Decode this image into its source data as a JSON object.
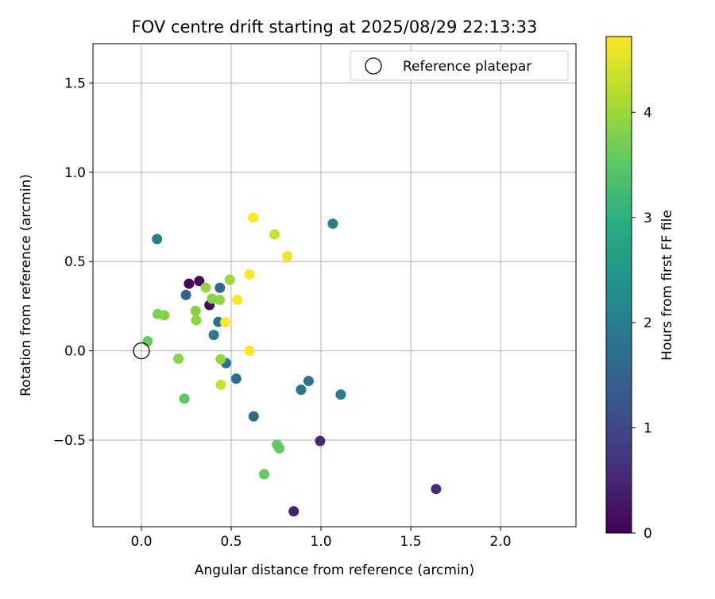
{
  "chart_data": {
    "type": "scatter",
    "title": "FOV centre drift starting at 2025/08/29 22:13:33",
    "xlabel": "Angular distance from reference (arcmin)",
    "ylabel": "Rotation from reference (arcmin)",
    "xlim": [
      -0.27,
      2.42
    ],
    "ylim": [
      -0.985,
      1.72
    ],
    "xticks": [
      0.0,
      0.5,
      1.0,
      1.5,
      2.0
    ],
    "xtick_labels": [
      "0.0",
      "0.5",
      "1.0",
      "1.5",
      "2.0"
    ],
    "yticks": [
      -0.5,
      0.0,
      0.5,
      1.0,
      1.5
    ],
    "ytick_labels": [
      "−0.5",
      "0.0",
      "0.5",
      "1.0",
      "1.5"
    ],
    "grid": true,
    "legend": {
      "position": "top-right",
      "label": "Reference platepar"
    },
    "reference_point": {
      "x": 0.0,
      "y": 0.0
    },
    "colorbar": {
      "label": "Hours from first FF file",
      "range": [
        0,
        4.72
      ],
      "ticks": [
        0,
        1,
        2,
        3,
        4
      ],
      "tick_labels": [
        "0",
        "1",
        "2",
        "3",
        "4"
      ],
      "colormap": "viridis"
    },
    "points": [
      {
        "x": 0.265,
        "y": 0.376,
        "c": 0.05
      },
      {
        "x": 0.322,
        "y": 0.391,
        "c": 0.1
      },
      {
        "x": 0.379,
        "y": 0.256,
        "c": 0.15
      },
      {
        "x": 0.848,
        "y": -0.899,
        "c": 0.4
      },
      {
        "x": 0.995,
        "y": -0.505,
        "c": 0.5
      },
      {
        "x": 1.641,
        "y": -0.774,
        "c": 0.55
      },
      {
        "x": 0.248,
        "y": 0.313,
        "c": 1.45
      },
      {
        "x": 0.437,
        "y": 0.353,
        "c": 1.55
      },
      {
        "x": 0.625,
        "y": -0.367,
        "c": 1.6
      },
      {
        "x": 0.428,
        "y": 0.162,
        "c": 1.7
      },
      {
        "x": 0.528,
        "y": -0.156,
        "c": 1.75
      },
      {
        "x": 0.471,
        "y": -0.069,
        "c": 1.85
      },
      {
        "x": 0.403,
        "y": 0.089,
        "c": 1.9
      },
      {
        "x": 0.889,
        "y": -0.218,
        "c": 1.8
      },
      {
        "x": 0.931,
        "y": -0.169,
        "c": 1.85
      },
      {
        "x": 1.11,
        "y": -0.245,
        "c": 1.95
      },
      {
        "x": 0.087,
        "y": 0.626,
        "c": 2.0
      },
      {
        "x": 1.066,
        "y": 0.712,
        "c": 2.05
      },
      {
        "x": 0.035,
        "y": 0.054,
        "c": 3.6
      },
      {
        "x": 0.239,
        "y": -0.268,
        "c": 3.55
      },
      {
        "x": 0.755,
        "y": -0.525,
        "c": 3.6
      },
      {
        "x": 0.768,
        "y": -0.546,
        "c": 3.55
      },
      {
        "x": 0.683,
        "y": -0.691,
        "c": 3.6
      },
      {
        "x": 0.206,
        "y": -0.044,
        "c": 3.85
      },
      {
        "x": 0.09,
        "y": 0.206,
        "c": 3.75
      },
      {
        "x": 0.127,
        "y": 0.199,
        "c": 3.8
      },
      {
        "x": 0.301,
        "y": 0.224,
        "c": 3.85
      },
      {
        "x": 0.305,
        "y": 0.172,
        "c": 3.9
      },
      {
        "x": 0.358,
        "y": 0.354,
        "c": 3.95
      },
      {
        "x": 0.393,
        "y": 0.292,
        "c": 3.85
      },
      {
        "x": 0.436,
        "y": 0.285,
        "c": 3.9
      },
      {
        "x": 0.492,
        "y": 0.398,
        "c": 4.0
      },
      {
        "x": 0.441,
        "y": -0.047,
        "c": 3.95
      },
      {
        "x": 0.442,
        "y": -0.19,
        "c": 4.35
      },
      {
        "x": 0.741,
        "y": 0.652,
        "c": 4.35
      },
      {
        "x": 0.467,
        "y": 0.16,
        "c": 4.7
      },
      {
        "x": 0.534,
        "y": 0.286,
        "c": 4.7
      },
      {
        "x": 0.602,
        "y": 0.428,
        "c": 4.7
      },
      {
        "x": 0.602,
        "y": 0.0,
        "c": 4.7
      },
      {
        "x": 0.622,
        "y": 0.746,
        "c": 4.7
      },
      {
        "x": 0.812,
        "y": 0.53,
        "c": 4.65
      }
    ]
  }
}
